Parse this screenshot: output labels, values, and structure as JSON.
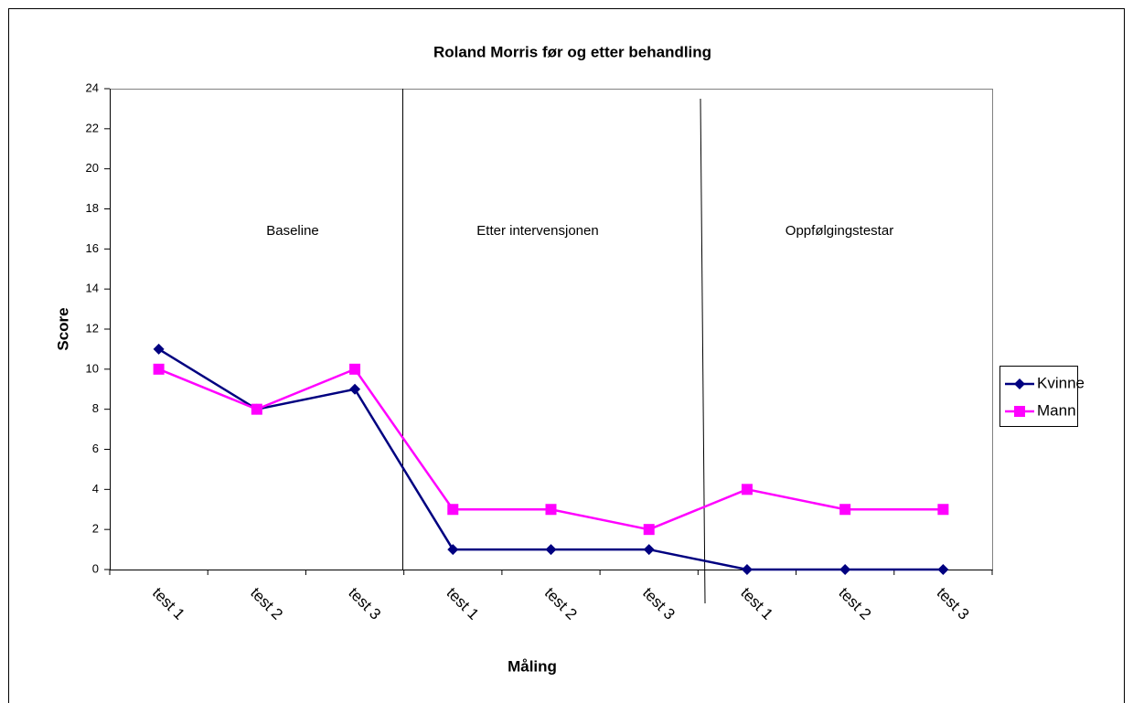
{
  "chart_data": {
    "type": "line",
    "title": "Roland Morris før og etter behandling",
    "x_label": "Måling",
    "y_label": "Score",
    "categories": [
      "test 1",
      "test 2",
      "test 3",
      "test 1",
      "test 2",
      "test 3",
      "test 1",
      "test 2",
      "test 3"
    ],
    "series": [
      {
        "name": "Kvinne",
        "color": "#000080",
        "marker": "diamond",
        "values": [
          11,
          8,
          9,
          1,
          1,
          1,
          0,
          0,
          0
        ]
      },
      {
        "name": "Mann",
        "color": "#ff00ff",
        "marker": "square",
        "values": [
          10,
          8,
          10,
          3,
          3,
          2,
          4,
          3,
          3
        ]
      }
    ],
    "annotations": [
      "Baseline",
      "Etter intervensjonen",
      "Oppfølgingstestar"
    ],
    "ylim": [
      0,
      24
    ],
    "yticks": [
      0,
      2,
      4,
      6,
      8,
      10,
      12,
      14,
      16,
      18,
      20,
      22,
      24
    ],
    "legend": "right"
  }
}
